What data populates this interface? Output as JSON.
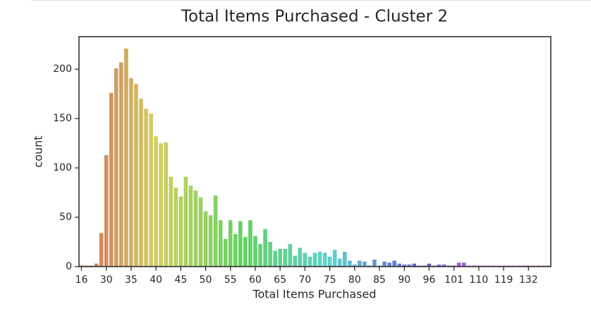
{
  "chart_data": {
    "type": "bar",
    "title": "Total Items Purchased - Cluster 2",
    "x_label": "Total Items Purchased",
    "y_label": "count",
    "categories": [
      16,
      null,
      null,
      null,
      null,
      30,
      null,
      null,
      null,
      null,
      35,
      null,
      null,
      null,
      null,
      40,
      null,
      null,
      null,
      null,
      45,
      null,
      null,
      null,
      null,
      50,
      null,
      null,
      null,
      null,
      55,
      null,
      null,
      null,
      null,
      60,
      null,
      null,
      null,
      null,
      65,
      null,
      null,
      null,
      null,
      70,
      null,
      null,
      null,
      null,
      75,
      null,
      null,
      null,
      null,
      80,
      null,
      null,
      null,
      null,
      85,
      null,
      null,
      null,
      null,
      90,
      null,
      null,
      null,
      null,
      96,
      null,
      null,
      null,
      null,
      101,
      null,
      null,
      null,
      null,
      110,
      null,
      null,
      null,
      null,
      119,
      null,
      null,
      null,
      null,
      132,
      null,
      null,
      null,
      null
    ],
    "values": [
      1,
      1,
      1,
      3,
      34,
      113,
      176,
      201,
      207,
      221,
      191,
      185,
      170,
      160,
      155,
      132,
      125,
      126,
      91,
      80,
      71,
      91,
      82,
      77,
      70,
      56,
      52,
      72,
      47,
      28,
      47,
      33,
      46,
      30,
      47,
      31,
      23,
      38,
      25,
      16,
      18,
      18,
      23,
      11,
      19,
      14,
      10,
      14,
      15,
      14,
      10,
      17,
      8,
      15,
      6,
      2,
      6,
      5,
      1,
      7,
      1,
      5,
      4,
      6,
      3,
      2,
      2,
      3,
      1,
      1,
      3,
      1,
      2,
      2,
      1,
      1,
      4,
      4,
      1,
      1,
      1,
      1,
      1,
      1,
      1,
      1,
      1,
      1,
      1,
      1,
      1,
      1,
      1,
      1,
      1
    ],
    "ylim": [
      0,
      233
    ],
    "yticks": [
      0,
      50,
      100,
      150,
      200
    ],
    "palette": "husl"
  }
}
